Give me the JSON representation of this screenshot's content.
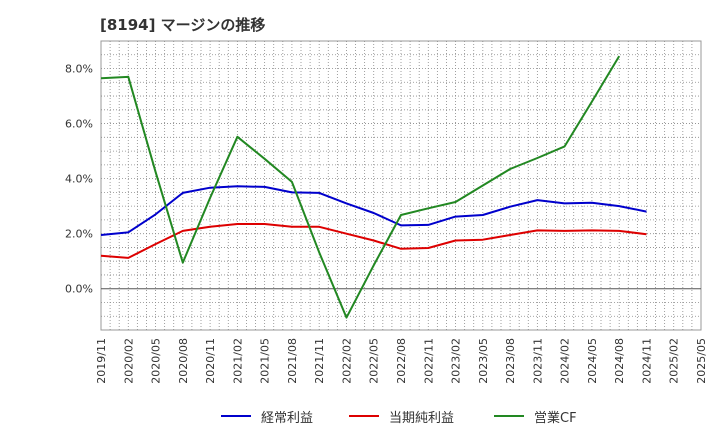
{
  "title": "[8194]  マージンの推移",
  "chart_data": {
    "type": "line",
    "title": "[8194]  マージンの推移",
    "xlabel": "",
    "ylabel": "",
    "x": [
      "2019/11",
      "2020/02",
      "2020/05",
      "2020/08",
      "2020/11",
      "2021/02",
      "2021/05",
      "2021/08",
      "2021/11",
      "2022/02",
      "2022/05",
      "2022/08",
      "2022/11",
      "2023/02",
      "2023/05",
      "2023/08",
      "2023/11",
      "2024/02",
      "2024/05",
      "2024/08",
      "2024/11",
      "2025/02",
      "2025/05"
    ],
    "yticks": [
      "0.0%",
      "2.0%",
      "4.0%",
      "6.0%",
      "8.0%"
    ],
    "ylim": [
      -1.5,
      9.0
    ],
    "grid": true,
    "legend_position": "bottom",
    "series": [
      {
        "name": "経常利益",
        "color": "#0000cc",
        "values": [
          1.95,
          2.05,
          2.7,
          3.48,
          3.67,
          3.72,
          3.7,
          3.5,
          3.48,
          3.1,
          2.75,
          2.3,
          2.32,
          2.62,
          2.68,
          2.98,
          3.22,
          3.1,
          3.12,
          3.0,
          2.8,
          null,
          null
        ]
      },
      {
        "name": "当期純利益",
        "color": "#dd0000",
        "values": [
          1.2,
          1.12,
          1.62,
          2.1,
          2.25,
          2.35,
          2.35,
          2.25,
          2.25,
          2.0,
          1.75,
          1.45,
          1.48,
          1.75,
          1.78,
          1.95,
          2.12,
          2.1,
          2.12,
          2.1,
          1.98,
          null,
          null
        ]
      },
      {
        "name": "営業CF",
        "color": "#228822",
        "values": [
          7.65,
          7.7,
          4.25,
          0.95,
          3.3,
          5.52,
          4.72,
          3.88,
          1.32,
          -1.05,
          0.85,
          2.68,
          2.92,
          3.15,
          3.75,
          4.35,
          4.75,
          5.17,
          6.8,
          8.45,
          null,
          null,
          null
        ]
      }
    ]
  }
}
